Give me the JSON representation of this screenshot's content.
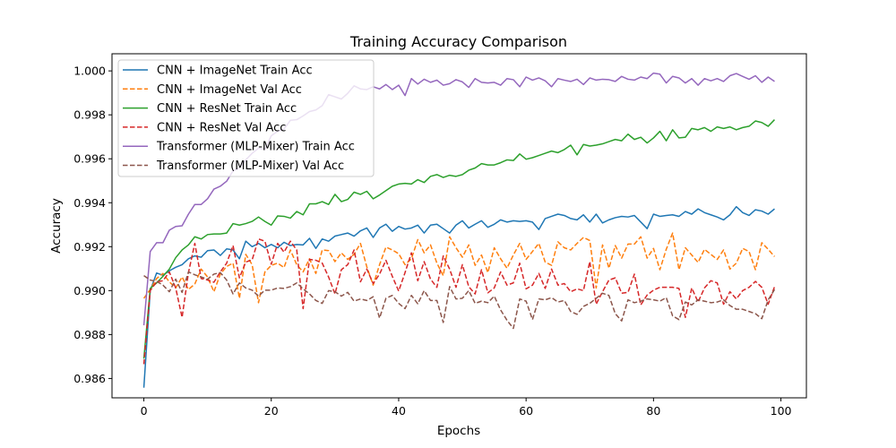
{
  "chart_data": {
    "type": "line",
    "title": "Training Accuracy Comparison",
    "xlabel": "Epochs",
    "ylabel": "Accuracy",
    "xlim": [
      -5,
      104
    ],
    "ylim": [
      0.98512,
      1.00078
    ],
    "xticks": [
      0,
      20,
      40,
      60,
      80,
      100
    ],
    "xtick_labels": [
      "0",
      "20",
      "40",
      "60",
      "80",
      "100"
    ],
    "yticks": [
      0.986,
      0.988,
      0.99,
      0.992,
      0.994,
      0.996,
      0.998,
      1.0
    ],
    "ytick_labels": [
      "0.986",
      "0.988",
      "0.990",
      "0.992",
      "0.994",
      "0.996",
      "0.998",
      "1.000"
    ],
    "grid": false,
    "legend_position": "top-left",
    "x_start": 0,
    "x_end": 99,
    "series": [
      {
        "name": "CNN + ImageNet Train Acc",
        "color": "#1f77b4",
        "dash": "solid",
        "values": [
          0.98558,
          0.99,
          0.9908,
          0.9907,
          0.9909,
          0.99106,
          0.99118,
          0.99145,
          0.99158,
          0.99152,
          0.99182,
          0.99185,
          0.9916,
          0.9919,
          0.99185,
          0.99145,
          0.99225,
          0.992,
          0.99215,
          0.99195,
          0.9921,
          0.99195,
          0.9922,
          0.99205,
          0.9921,
          0.99208,
          0.99238,
          0.99192,
          0.99235,
          0.99225,
          0.99248,
          0.99255,
          0.99262,
          0.99248,
          0.99272,
          0.99285,
          0.99242,
          0.99285,
          0.99302,
          0.9927,
          0.99292,
          0.9928,
          0.99285,
          0.99298,
          0.99262,
          0.99298,
          0.99302,
          0.99282,
          0.99262,
          0.99298,
          0.99318,
          0.99285,
          0.99302,
          0.99318,
          0.99288,
          0.99302,
          0.99322,
          0.99312,
          0.99318,
          0.99315,
          0.99318,
          0.99312,
          0.99278,
          0.99328,
          0.99338,
          0.99348,
          0.99342,
          0.99328,
          0.99322,
          0.99345,
          0.99312,
          0.99348,
          0.99308,
          0.99322,
          0.99332,
          0.99338,
          0.99335,
          0.99342,
          0.99312,
          0.99282,
          0.99348,
          0.99338,
          0.99342,
          0.99345,
          0.99338,
          0.9936,
          0.99348,
          0.99372,
          0.99355,
          0.99345,
          0.99335,
          0.99322,
          0.99345,
          0.99382,
          0.99355,
          0.99342,
          0.99368,
          0.99362,
          0.99348,
          0.99372
        ]
      },
      {
        "name": "CNN + ImageNet Val Acc",
        "color": "#ff7f0e",
        "dash": "dashed",
        "values": [
          0.98965,
          0.99005,
          0.99055,
          0.99078,
          0.9904,
          0.99012,
          0.99062,
          0.99005,
          0.9903,
          0.99098,
          0.99062,
          0.98995,
          0.99075,
          0.9911,
          0.99125,
          0.98965,
          0.99165,
          0.99118,
          0.98945,
          0.99085,
          0.99115,
          0.99125,
          0.99105,
          0.99185,
          0.99118,
          0.99085,
          0.99145,
          0.99078,
          0.99185,
          0.99182,
          0.99132,
          0.99172,
          0.99142,
          0.99165,
          0.99215,
          0.99108,
          0.99025,
          0.99118,
          0.99198,
          0.99185,
          0.99168,
          0.99118,
          0.99145,
          0.99232,
          0.99172,
          0.99208,
          0.99125,
          0.99068,
          0.99245,
          0.99195,
          0.99152,
          0.99208,
          0.99115,
          0.99162,
          0.99082,
          0.99195,
          0.99145,
          0.99102,
          0.99162,
          0.99215,
          0.99142,
          0.99178,
          0.99215,
          0.9913,
          0.99115,
          0.99222,
          0.99195,
          0.99185,
          0.99215,
          0.99242,
          0.99228,
          0.99012,
          0.99208,
          0.99102,
          0.99205,
          0.99148,
          0.99212,
          0.99212,
          0.99245,
          0.99148,
          0.99192,
          0.99095,
          0.99188,
          0.99262,
          0.99095,
          0.99195,
          0.99162,
          0.99128,
          0.99188,
          0.99165,
          0.99142,
          0.99185,
          0.99098,
          0.99125,
          0.99192,
          0.99178,
          0.99095,
          0.99218,
          0.99188,
          0.99155
        ]
      },
      {
        "name": "CNN + ResNet Train Acc",
        "color": "#2ca02c",
        "dash": "solid",
        "values": [
          0.9869,
          0.9901,
          0.99035,
          0.99065,
          0.99098,
          0.9915,
          0.99185,
          0.99208,
          0.99245,
          0.99235,
          0.99255,
          0.99258,
          0.99258,
          0.99262,
          0.99305,
          0.99298,
          0.99305,
          0.99315,
          0.99335,
          0.99315,
          0.99298,
          0.9934,
          0.99338,
          0.9933,
          0.9936,
          0.99345,
          0.99395,
          0.99395,
          0.99405,
          0.99392,
          0.99438,
          0.99405,
          0.99415,
          0.99448,
          0.99438,
          0.99452,
          0.99418,
          0.99435,
          0.99455,
          0.99475,
          0.99485,
          0.99488,
          0.99485,
          0.99505,
          0.99492,
          0.9952,
          0.99528,
          0.99515,
          0.99525,
          0.9952,
          0.99528,
          0.99548,
          0.99558,
          0.99578,
          0.99572,
          0.99572,
          0.99582,
          0.99595,
          0.99592,
          0.99622,
          0.99598,
          0.99605,
          0.99615,
          0.99625,
          0.99635,
          0.99628,
          0.99642,
          0.99662,
          0.99618,
          0.99665,
          0.99658,
          0.99662,
          0.99668,
          0.99678,
          0.99688,
          0.99682,
          0.99712,
          0.99688,
          0.99698,
          0.99672,
          0.99695,
          0.99725,
          0.99682,
          0.99732,
          0.99695,
          0.99698,
          0.99738,
          0.99732,
          0.99742,
          0.99725,
          0.99745,
          0.99738,
          0.99745,
          0.99732,
          0.99742,
          0.99748,
          0.99772,
          0.99765,
          0.99748,
          0.99778
        ]
      },
      {
        "name": "CNN + ResNet Val Acc",
        "color": "#d62728",
        "dash": "dashed",
        "values": [
          0.98665,
          0.99,
          0.9904,
          0.99045,
          0.99085,
          0.99012,
          0.98878,
          0.99082,
          0.99215,
          0.99055,
          0.99048,
          0.99038,
          0.99085,
          0.99125,
          0.99205,
          0.99058,
          0.9913,
          0.9914,
          0.99235,
          0.99225,
          0.9912,
          0.99215,
          0.99175,
          0.99225,
          0.99185,
          0.98918,
          0.99142,
          0.99138,
          0.99125,
          0.99062,
          0.98985,
          0.99095,
          0.99118,
          0.99185,
          0.9904,
          0.99098,
          0.99032,
          0.99075,
          0.99138,
          0.99065,
          0.98998,
          0.99082,
          0.99172,
          0.99045,
          0.99132,
          0.99052,
          0.99015,
          0.99158,
          0.99098,
          0.99015,
          0.99118,
          0.99018,
          0.98985,
          0.99095,
          0.9899,
          0.99012,
          0.99085,
          0.99025,
          0.99035,
          0.99125,
          0.99008,
          0.99025,
          0.99078,
          0.9901,
          0.99098,
          0.99025,
          0.99032,
          0.98995,
          0.99008,
          0.99,
          0.99132,
          0.98938,
          0.98995,
          0.99048,
          0.99058,
          0.98988,
          0.98992,
          0.99075,
          0.98935,
          0.9898,
          0.99002,
          0.99015,
          0.99015,
          0.99015,
          0.9901,
          0.98878,
          0.99012,
          0.98948,
          0.99012,
          0.99045,
          0.99035,
          0.98938,
          0.98995,
          0.98962,
          0.99,
          0.99015,
          0.99042,
          0.99015,
          0.98938,
          0.99018
        ]
      },
      {
        "name": "Transformer (MLP-Mixer) Train Acc",
        "color": "#9467bd",
        "dash": "solid",
        "values": [
          0.98842,
          0.99178,
          0.99218,
          0.99218,
          0.99275,
          0.99292,
          0.99295,
          0.99348,
          0.99392,
          0.99392,
          0.99418,
          0.99462,
          0.99475,
          0.99498,
          0.99545,
          0.99558,
          0.99595,
          0.99625,
          0.99648,
          0.99642,
          0.99705,
          0.99725,
          0.99735,
          0.99775,
          0.99778,
          0.99795,
          0.99815,
          0.99822,
          0.99842,
          0.99892,
          0.99882,
          0.99872,
          0.99898,
          0.99932,
          0.99918,
          0.99915,
          0.99928,
          0.99918,
          0.99938,
          0.99915,
          0.99935,
          0.99888,
          0.99965,
          0.9994,
          0.99962,
          0.99948,
          0.99958,
          0.99935,
          0.99942,
          0.9996,
          0.9995,
          0.99925,
          0.99965,
          0.99948,
          0.99945,
          0.99948,
          0.99935,
          0.99965,
          0.9996,
          0.99928,
          0.99972,
          0.99958,
          0.99968,
          0.99955,
          0.99928,
          0.99965,
          0.99958,
          0.99952,
          0.99962,
          0.99938,
          0.99968,
          0.99958,
          0.99962,
          0.9996,
          0.99952,
          0.99975,
          0.99962,
          0.99958,
          0.99972,
          0.99965,
          0.9999,
          0.99985,
          0.99945,
          0.99975,
          0.99968,
          0.99945,
          0.99965,
          0.99935,
          0.99965,
          0.99955,
          0.99965,
          0.99952,
          0.99978,
          0.99988,
          0.99975,
          0.99962,
          0.99978,
          0.99948,
          0.99972,
          0.99952
        ]
      },
      {
        "name": "Transformer (MLP-Mixer) Val Acc",
        "color": "#8c564b",
        "dash": "dashed",
        "values": [
          0.99068,
          0.99048,
          0.99042,
          0.99025,
          0.98995,
          0.99052,
          0.98992,
          0.99085,
          0.99072,
          0.99062,
          0.99052,
          0.99075,
          0.99082,
          0.99048,
          0.98985,
          0.99035,
          0.99012,
          0.99002,
          0.98975,
          0.99002,
          0.99002,
          0.99012,
          0.9901,
          0.99018,
          0.99035,
          0.99008,
          0.98985,
          0.98955,
          0.98942,
          0.99,
          0.98995,
          0.98975,
          0.98992,
          0.98952,
          0.98962,
          0.98955,
          0.98972,
          0.98875,
          0.98965,
          0.98978,
          0.98942,
          0.98918,
          0.98978,
          0.9894,
          0.99,
          0.98955,
          0.98955,
          0.98855,
          0.99018,
          0.98962,
          0.98965,
          0.99,
          0.98942,
          0.98952,
          0.98945,
          0.98975,
          0.98912,
          0.98865,
          0.98828,
          0.98962,
          0.98952,
          0.98868,
          0.98962,
          0.98958,
          0.98968,
          0.98948,
          0.98955,
          0.98905,
          0.98892,
          0.98928,
          0.98942,
          0.98965,
          0.98988,
          0.98978,
          0.98895,
          0.98862,
          0.98958,
          0.98945,
          0.98952,
          0.98962,
          0.98958,
          0.98952,
          0.98968,
          0.98885,
          0.98868,
          0.98948,
          0.98935,
          0.98958,
          0.98952,
          0.98945,
          0.98948,
          0.98958,
          0.98932,
          0.98915,
          0.98915,
          0.98905,
          0.98895,
          0.98872,
          0.98958,
          0.99005
        ]
      }
    ]
  }
}
